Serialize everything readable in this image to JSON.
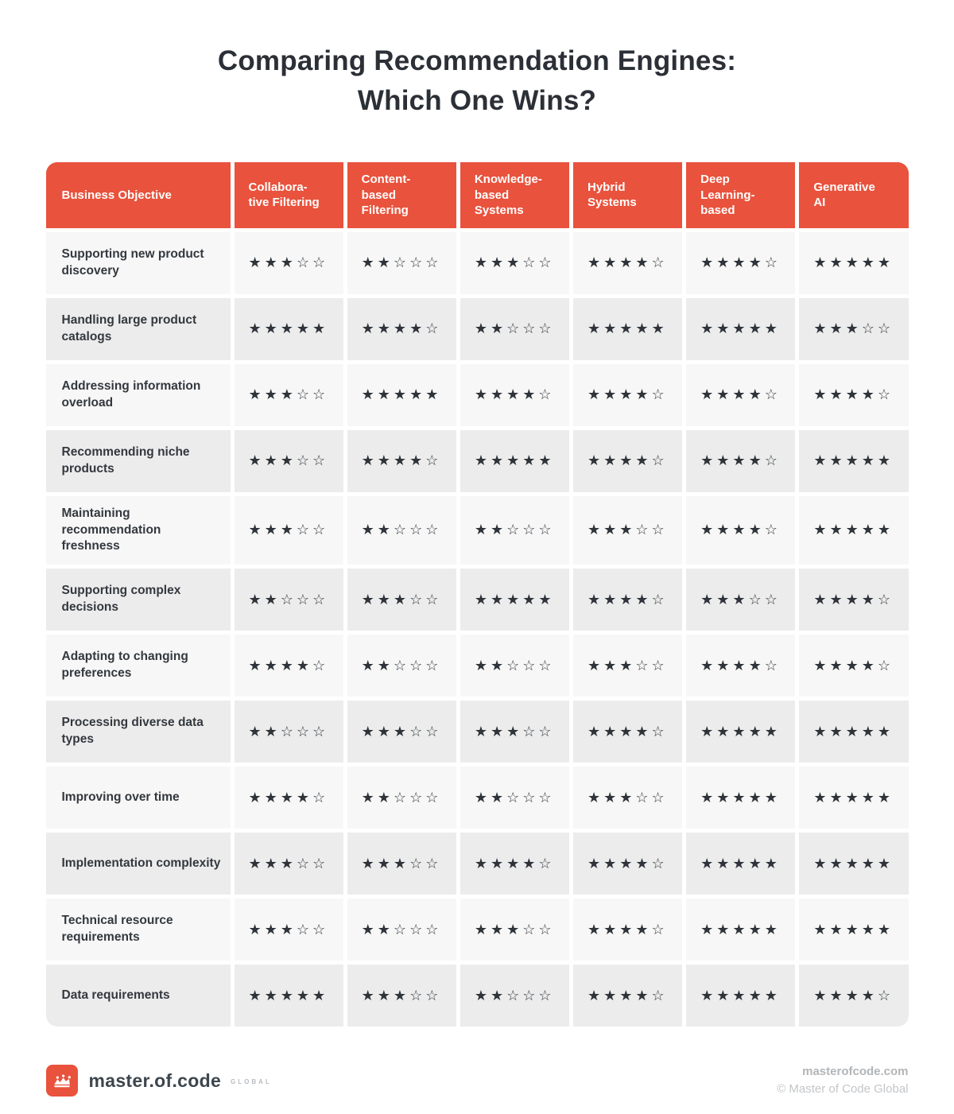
{
  "title": "Comparing Recommendation Engines:\nWhich One Wins?",
  "colors": {
    "accent_orange": "#E9523C",
    "row_light": "#F7F7F7",
    "row_dark": "#ECECEC",
    "star_color": "#2F343A",
    "header_text": "#FFFFFF",
    "title_text": "#2B3037"
  },
  "table": {
    "header_label": "Business Objective",
    "columns_display": [
      "Collabora-\ntive Filtering",
      "Content-\nbased\nFiltering",
      "Knowledge-\nbased\nSystems",
      "Hybrid\nSystems",
      "Deep\nLearning-\nbased",
      "Generative\nAI"
    ],
    "star_filled_glyph": "★",
    "star_empty_glyph": "☆"
  },
  "chart_data": {
    "type": "table",
    "title": "Comparing Recommendation Engines: Which One Wins?",
    "row_header": "Business Objective",
    "columns": [
      "Collaborative Filtering",
      "Content-based Filtering",
      "Knowledge-based Systems",
      "Hybrid Systems",
      "Deep Learning-based",
      "Generative AI"
    ],
    "rows": [
      "Supporting new product discovery",
      "Handling large product catalogs",
      "Addressing information overload",
      "Recommending niche products",
      "Maintaining recommendation freshness",
      "Supporting complex decisions",
      "Adapting to changing preferences",
      "Processing diverse data types",
      "Improving over time",
      "Implementation complexity",
      "Technical resource requirements",
      "Data requirements"
    ],
    "values": [
      [
        3,
        2,
        3,
        4,
        4,
        5
      ],
      [
        5,
        4,
        2,
        5,
        5,
        3
      ],
      [
        3,
        5,
        4,
        4,
        4,
        4
      ],
      [
        3,
        4,
        5,
        4,
        4,
        5
      ],
      [
        3,
        2,
        2,
        3,
        4,
        5
      ],
      [
        2,
        3,
        5,
        4,
        3,
        4
      ],
      [
        4,
        2,
        2,
        3,
        4,
        4
      ],
      [
        2,
        3,
        3,
        4,
        5,
        5
      ],
      [
        4,
        2,
        2,
        3,
        5,
        5
      ],
      [
        3,
        3,
        4,
        4,
        5,
        5
      ],
      [
        3,
        2,
        3,
        4,
        5,
        5
      ],
      [
        5,
        3,
        2,
        4,
        5,
        4
      ]
    ],
    "scale": {
      "min": 0,
      "max": 5,
      "unit": "stars"
    },
    "legend_position": "none",
    "grid": false
  },
  "footer": {
    "logo_name": "master.of.code",
    "logo_suffix": "GLOBAL",
    "site": "masterofcode.com",
    "copyright": "© Master of Code Global"
  }
}
